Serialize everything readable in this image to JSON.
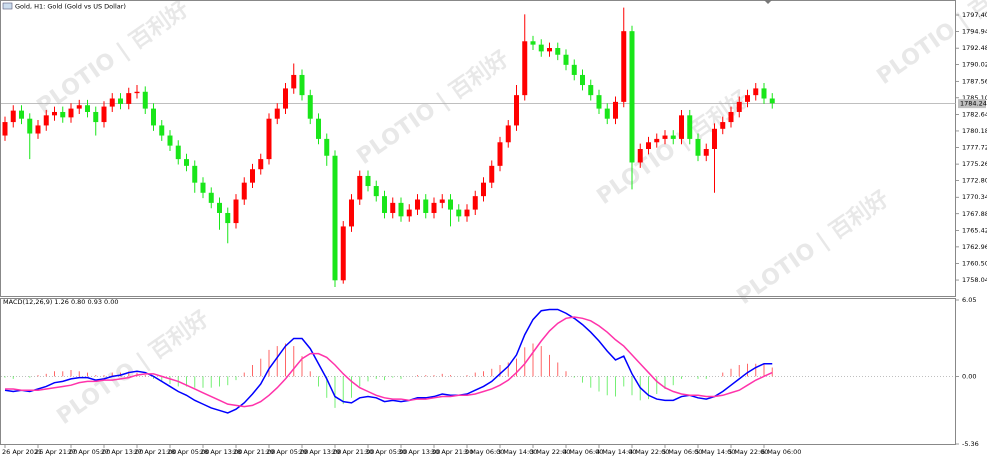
{
  "chart_data": {
    "type": "candlestick",
    "title": "Gold, H1: Gold (Gold vs US Dollar)",
    "indicator_title": "MACD(12,26,9) 1.26 0.80 0.93 0.00",
    "watermark": "PLOTIO | 百利好",
    "up_color": "#ff0000",
    "down_color": "#19e619",
    "current_price": 1784.24,
    "categories": [
      "26 Apr 2021",
      null,
      null,
      null,
      "26 Apr 21:00",
      null,
      null,
      null,
      "27 Apr 05:00",
      null,
      null,
      null,
      "27 Apr 13:00",
      null,
      null,
      null,
      "27 Apr 21:00",
      null,
      null,
      null,
      "28 Apr 05:00",
      null,
      null,
      null,
      "28 Apr 13:00",
      null,
      null,
      null,
      "28 Apr 21:00",
      null,
      null,
      null,
      "29 Apr 05:00",
      null,
      null,
      null,
      "29 Apr 13:00",
      null,
      null,
      null,
      "29 Apr 21:00",
      null,
      null,
      null,
      "30 Apr 05:00",
      null,
      null,
      null,
      "30 Apr 13:00",
      null,
      null,
      null,
      "30 Apr 21:00",
      null,
      null,
      null,
      "3 May 06:00",
      null,
      null,
      null,
      "3 May 14:00",
      null,
      null,
      null,
      "3 May 22:00",
      null,
      null,
      null,
      "4 May 06:00",
      null,
      null,
      null,
      "4 May 14:00",
      null,
      null,
      null,
      "4 May 22:00",
      null,
      null,
      null,
      "5 May 06:00",
      null,
      null,
      null,
      "5 May 14:00",
      null,
      null,
      null,
      "5 May 22:00",
      null,
      null,
      null,
      "6 May 06:00",
      null
    ],
    "open": [
      1779.5,
      1781.5,
      1783.2,
      1782.0,
      1779.8,
      1781.0,
      1782.5,
      1783.0,
      1782.2,
      1783.5,
      1784.0,
      1783.0,
      1781.5,
      1783.8,
      1785.0,
      1784.2,
      1785.8,
      1786.0,
      1783.5,
      1781.0,
      1779.5,
      1778.0,
      1776.0,
      1775.0,
      1772.5,
      1771.0,
      1769.5,
      1768.0,
      1766.5,
      1770.0,
      1772.5,
      1774.5,
      1776.0,
      1782.0,
      1783.5,
      1786.5,
      1788.5,
      1785.5,
      1782.0,
      1779.0,
      1776.5,
      1758.0,
      1766.0,
      1770.0,
      1773.5,
      1772.0,
      1770.5,
      1768.0,
      1769.5,
      1767.5,
      1768.5,
      1770.0,
      1768.0,
      1769.5,
      1770.0,
      1768.5,
      1767.5,
      1768.5,
      1770.5,
      1772.5,
      1775.0,
      1778.5,
      1781.0,
      1785.5,
      1793.5,
      1793.0,
      1792.0,
      1792.5,
      1791.5,
      1790.0,
      1788.5,
      1787.0,
      1785.5,
      1783.5,
      1782.0,
      1784.5,
      1795.0,
      1775.5,
      1777.5,
      1778.5,
      1779.0,
      1779.5,
      1779.0,
      1782.5,
      1779.0,
      1776.5,
      1777.5,
      1780.5,
      1781.5,
      1783.0,
      1784.5,
      1785.5,
      1786.5,
      1785.0
    ],
    "high": [
      1782.3,
      1784.0,
      1784.0,
      1782.8,
      1781.8,
      1783.3,
      1783.8,
      1783.8,
      1784.3,
      1784.8,
      1784.8,
      1783.8,
      1784.6,
      1785.8,
      1785.8,
      1786.6,
      1787.0,
      1786.8,
      1784.3,
      1781.8,
      1780.3,
      1778.8,
      1776.8,
      1775.8,
      1773.3,
      1771.8,
      1770.3,
      1768.8,
      1770.8,
      1773.3,
      1775.3,
      1776.8,
      1782.8,
      1784.3,
      1787.3,
      1790.2,
      1789.3,
      1786.3,
      1782.8,
      1779.8,
      1777.3,
      1766.8,
      1770.8,
      1774.3,
      1774.3,
      1772.8,
      1771.3,
      1770.3,
      1770.3,
      1769.3,
      1770.8,
      1770.8,
      1770.3,
      1770.8,
      1770.8,
      1769.3,
      1769.3,
      1771.3,
      1773.3,
      1775.8,
      1779.3,
      1781.8,
      1787.0,
      1797.5,
      1794.3,
      1793.8,
      1793.3,
      1793.3,
      1792.3,
      1790.8,
      1789.3,
      1787.8,
      1786.3,
      1784.3,
      1785.3,
      1798.5,
      1795.8,
      1778.3,
      1779.3,
      1779.8,
      1780.3,
      1780.3,
      1783.3,
      1783.3,
      1779.8,
      1778.3,
      1781.3,
      1782.3,
      1783.8,
      1785.3,
      1786.3,
      1787.3,
      1787.3,
      1785.8
    ],
    "low": [
      1778.7,
      1780.7,
      1781.2,
      1776.0,
      1779.0,
      1780.2,
      1781.7,
      1781.4,
      1781.4,
      1782.7,
      1782.2,
      1779.5,
      1780.7,
      1783.0,
      1783.4,
      1783.4,
      1785.0,
      1782.7,
      1780.2,
      1778.7,
      1777.2,
      1775.2,
      1774.2,
      1771.0,
      1770.2,
      1768.7,
      1765.5,
      1763.5,
      1765.7,
      1769.2,
      1771.7,
      1773.7,
      1775.2,
      1781.2,
      1782.7,
      1785.7,
      1784.7,
      1781.2,
      1778.2,
      1775.0,
      1757.0,
      1757.5,
      1765.2,
      1769.2,
      1771.2,
      1769.7,
      1767.2,
      1767.2,
      1766.7,
      1766.7,
      1767.7,
      1767.2,
      1767.2,
      1768.7,
      1766.0,
      1766.7,
      1766.7,
      1767.7,
      1769.7,
      1771.7,
      1774.2,
      1777.7,
      1780.2,
      1784.7,
      1792.2,
      1791.2,
      1791.2,
      1790.7,
      1789.2,
      1787.7,
      1786.2,
      1784.7,
      1782.7,
      1781.2,
      1781.2,
      1783.7,
      1771.5,
      1774.7,
      1776.7,
      1777.7,
      1778.2,
      1778.2,
      1778.2,
      1778.2,
      1775.7,
      1775.7,
      1771.0,
      1779.7,
      1780.7,
      1782.2,
      1783.7,
      1784.7,
      1784.2,
      1783.5
    ],
    "close": [
      1781.5,
      1783.2,
      1782.0,
      1779.8,
      1781.0,
      1782.5,
      1783.0,
      1782.2,
      1783.5,
      1784.0,
      1783.0,
      1781.5,
      1783.8,
      1785.0,
      1784.2,
      1785.8,
      1786.0,
      1783.5,
      1781.0,
      1779.5,
      1778.0,
      1776.0,
      1775.0,
      1772.5,
      1771.0,
      1769.5,
      1768.0,
      1766.5,
      1770.0,
      1772.5,
      1774.5,
      1776.0,
      1782.0,
      1783.5,
      1786.5,
      1788.5,
      1785.5,
      1782.0,
      1779.0,
      1776.5,
      1758.0,
      1766.0,
      1770.0,
      1773.5,
      1772.0,
      1770.5,
      1768.0,
      1769.5,
      1767.5,
      1768.5,
      1770.0,
      1768.0,
      1769.5,
      1770.0,
      1768.5,
      1767.5,
      1768.5,
      1770.5,
      1772.5,
      1775.0,
      1778.5,
      1781.0,
      1785.5,
      1793.5,
      1793.0,
      1792.0,
      1792.5,
      1791.5,
      1790.0,
      1788.5,
      1787.0,
      1785.5,
      1783.5,
      1782.0,
      1784.5,
      1795.0,
      1775.5,
      1777.5,
      1778.5,
      1779.0,
      1779.5,
      1779.0,
      1782.5,
      1779.0,
      1776.5,
      1777.5,
      1780.5,
      1781.5,
      1783.0,
      1784.5,
      1785.5,
      1786.5,
      1785.0,
      1784.3
    ],
    "ylim": [
      1755.52,
      1799.63
    ],
    "yticks": [
      {
        "value": 1797.4,
        "label": "1797.40"
      },
      1794.94,
      1792.48,
      1790.02,
      1787.56,
      {
        "value": 1785.1,
        "label": "1785.10"
      },
      1782.64,
      1780.18,
      1777.72,
      1775.26,
      {
        "value": 1772.8,
        "label": "1772.80"
      },
      1770.34,
      1767.88,
      1765.42,
      1762.96,
      {
        "value": 1760.5,
        "label": "1760.50"
      },
      1758.04
    ],
    "macd": {
      "y2lim": [
        -5.36,
        6.05
      ],
      "y2ticks": [
        6.05,
        {
          "value": 0,
          "label": "0.00"
        },
        -5.36
      ],
      "histogram": [
        -0.1,
        -0.2,
        0.0,
        -0.1,
        0.1,
        0.2,
        0.4,
        0.4,
        0.5,
        0.4,
        0.3,
        0.1,
        0.1,
        0.3,
        0.3,
        0.4,
        0.3,
        0.1,
        -0.2,
        -0.4,
        -0.6,
        -0.8,
        -0.8,
        -0.9,
        -0.9,
        -0.9,
        -0.8,
        -0.7,
        -0.3,
        0.3,
        0.9,
        1.4,
        2.1,
        2.4,
        2.6,
        2.4,
        1.6,
        0.4,
        -0.8,
        -1.7,
        -2.5,
        -2.2,
        -1.7,
        -0.8,
        -0.4,
        -0.2,
        -0.3,
        -0.1,
        -0.2,
        0.0,
        0.1,
        0.1,
        0.1,
        0.2,
        0.1,
        0.0,
        0.1,
        0.3,
        0.4,
        0.6,
        0.9,
        1.1,
        1.4,
        2.3,
        2.6,
        2.4,
        1.7,
        1.1,
        0.4,
        -0.1,
        -0.5,
        -0.9,
        -1.2,
        -1.5,
        -1.6,
        -0.8,
        -1.5,
        -1.9,
        -1.8,
        -1.4,
        -1.0,
        -0.7,
        -0.2,
        0.0,
        -0.2,
        -0.2,
        0.0,
        0.3,
        0.6,
        0.9,
        1.0,
        1.0,
        1.0,
        0.7
      ],
      "series": [
        {
          "name": "MACD",
          "color": "#0000ff",
          "values": [
            -1.1,
            -1.2,
            -1.1,
            -1.2,
            -1.0,
            -0.8,
            -0.5,
            -0.4,
            -0.2,
            -0.1,
            -0.1,
            -0.3,
            -0.2,
            0.0,
            0.1,
            0.3,
            0.4,
            0.3,
            0.0,
            -0.4,
            -0.8,
            -1.2,
            -1.5,
            -1.9,
            -2.2,
            -2.5,
            -2.7,
            -2.9,
            -2.6,
            -2.1,
            -1.4,
            -0.6,
            0.6,
            1.5,
            2.4,
            3.0,
            3.0,
            2.2,
            1.0,
            -0.2,
            -1.6,
            -2.0,
            -2.1,
            -1.7,
            -1.6,
            -1.7,
            -2.0,
            -1.9,
            -2.0,
            -1.9,
            -1.7,
            -1.7,
            -1.6,
            -1.4,
            -1.5,
            -1.5,
            -1.4,
            -1.1,
            -0.8,
            -0.4,
            0.2,
            0.8,
            1.7,
            3.3,
            4.5,
            5.2,
            5.3,
            5.3,
            5.0,
            4.6,
            4.1,
            3.5,
            2.8,
            2.0,
            1.3,
            1.6,
            0.2,
            -0.9,
            -1.5,
            -1.8,
            -1.9,
            -1.9,
            -1.6,
            -1.5,
            -1.7,
            -1.8,
            -1.6,
            -1.2,
            -0.7,
            -0.2,
            0.3,
            0.7,
            1.0,
            1.0
          ]
        },
        {
          "name": "Signal",
          "color": "#ff33aa",
          "values": [
            -1.0,
            -1.0,
            -1.1,
            -1.1,
            -1.1,
            -1.0,
            -0.9,
            -0.8,
            -0.7,
            -0.5,
            -0.4,
            -0.4,
            -0.3,
            -0.3,
            -0.2,
            -0.1,
            0.1,
            0.2,
            0.2,
            0.0,
            -0.2,
            -0.4,
            -0.7,
            -1.0,
            -1.3,
            -1.6,
            -1.9,
            -2.2,
            -2.3,
            -2.4,
            -2.3,
            -2.0,
            -1.5,
            -0.9,
            -0.2,
            0.6,
            1.4,
            1.8,
            1.8,
            1.5,
            0.9,
            0.2,
            -0.4,
            -0.9,
            -1.2,
            -1.5,
            -1.7,
            -1.8,
            -1.8,
            -1.9,
            -1.8,
            -1.8,
            -1.7,
            -1.6,
            -1.6,
            -1.5,
            -1.5,
            -1.4,
            -1.2,
            -1.0,
            -0.7,
            -0.3,
            0.3,
            1.0,
            1.9,
            2.8,
            3.6,
            4.2,
            4.6,
            4.7,
            4.6,
            4.4,
            4.0,
            3.5,
            2.9,
            2.4,
            1.7,
            1.0,
            0.3,
            -0.4,
            -0.9,
            -1.2,
            -1.4,
            -1.5,
            -1.5,
            -1.6,
            -1.6,
            -1.5,
            -1.3,
            -1.1,
            -0.7,
            -0.3,
            0.0,
            0.3
          ]
        }
      ]
    }
  }
}
